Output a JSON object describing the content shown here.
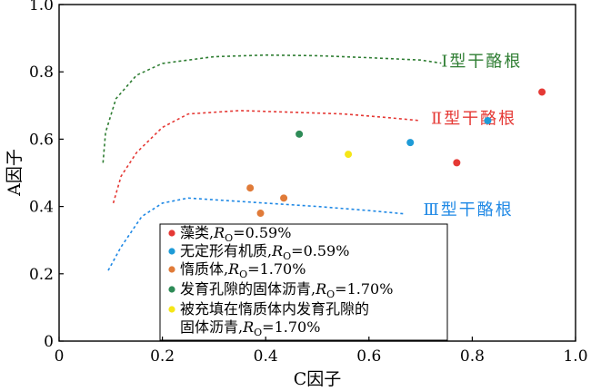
{
  "chart_data": {
    "type": "scatter",
    "xlabel": "C因子",
    "ylabel": "A因子",
    "xlim": [
      0,
      1.0
    ],
    "ylim": [
      0,
      1.0
    ],
    "xticks": [
      {
        "value": 0,
        "label": "0"
      },
      {
        "value": 0.2,
        "label": "0.2"
      },
      {
        "value": 0.4,
        "label": "0.4"
      },
      {
        "value": 0.6,
        "label": "0.6"
      },
      {
        "value": 0.8,
        "label": "0.8"
      },
      {
        "value": 1.0,
        "label": "1.0"
      }
    ],
    "yticks": [
      {
        "value": 0,
        "label": "0"
      },
      {
        "value": 0.2,
        "label": "0.2"
      },
      {
        "value": 0.4,
        "label": "0.4"
      },
      {
        "value": 0.6,
        "label": "0.6"
      },
      {
        "value": 0.8,
        "label": "0.8"
      },
      {
        "value": 1.0,
        "label": "1.0"
      }
    ],
    "grid": false,
    "curves": [
      {
        "label": "Ⅰ型干酪根",
        "color": "#2e7d32",
        "label_at": [
          0.74,
          0.815
        ],
        "points": [
          [
            0.085,
            0.53
          ],
          [
            0.09,
            0.62
          ],
          [
            0.11,
            0.72
          ],
          [
            0.15,
            0.79
          ],
          [
            0.2,
            0.825
          ],
          [
            0.3,
            0.845
          ],
          [
            0.4,
            0.85
          ],
          [
            0.5,
            0.848
          ],
          [
            0.6,
            0.842
          ],
          [
            0.7,
            0.835
          ],
          [
            0.74,
            0.826
          ]
        ]
      },
      {
        "label": "Ⅱ型干酪根",
        "color": "#e53935",
        "label_at": [
          0.72,
          0.645
        ],
        "points": [
          [
            0.105,
            0.41
          ],
          [
            0.12,
            0.49
          ],
          [
            0.15,
            0.56
          ],
          [
            0.2,
            0.635
          ],
          [
            0.25,
            0.675
          ],
          [
            0.35,
            0.685
          ],
          [
            0.45,
            0.68
          ],
          [
            0.55,
            0.675
          ],
          [
            0.63,
            0.665
          ],
          [
            0.7,
            0.655
          ]
        ]
      },
      {
        "label": "Ⅲ型干酪根",
        "color": "#1e88e5",
        "label_at": [
          0.705,
          0.375
        ],
        "points": [
          [
            0.095,
            0.21
          ],
          [
            0.12,
            0.28
          ],
          [
            0.16,
            0.37
          ],
          [
            0.2,
            0.41
          ],
          [
            0.25,
            0.425
          ],
          [
            0.3,
            0.42
          ],
          [
            0.4,
            0.41
          ],
          [
            0.5,
            0.4
          ],
          [
            0.6,
            0.388
          ],
          [
            0.67,
            0.378
          ]
        ]
      }
    ],
    "series": [
      {
        "name": "藻类,",
        "ro": "0.59%",
        "color": "#e53935",
        "points": [
          [
            0.935,
            0.74
          ],
          [
            0.77,
            0.53
          ]
        ]
      },
      {
        "name": "无定形有机质,",
        "ro": "0.59%",
        "color": "#1e9bd7",
        "points": [
          [
            0.83,
            0.655
          ],
          [
            0.68,
            0.59
          ]
        ]
      },
      {
        "name": "惰质体,",
        "ro": "1.70%",
        "color": "#e07b39",
        "points": [
          [
            0.37,
            0.455
          ],
          [
            0.435,
            0.425
          ],
          [
            0.39,
            0.38
          ]
        ]
      },
      {
        "name": "发育孔隙的固体沥青,",
        "ro": "1.70%",
        "color": "#2e8b57",
        "points": [
          [
            0.465,
            0.615
          ]
        ]
      },
      {
        "name_lines": [
          "被充填在惰质体内发育孔隙的",
          "固体沥青,"
        ],
        "ro": "1.70%",
        "color": "#f5e617",
        "points": [
          [
            0.56,
            0.555
          ]
        ]
      }
    ],
    "legend": {
      "placement": "bottom-center"
    }
  }
}
